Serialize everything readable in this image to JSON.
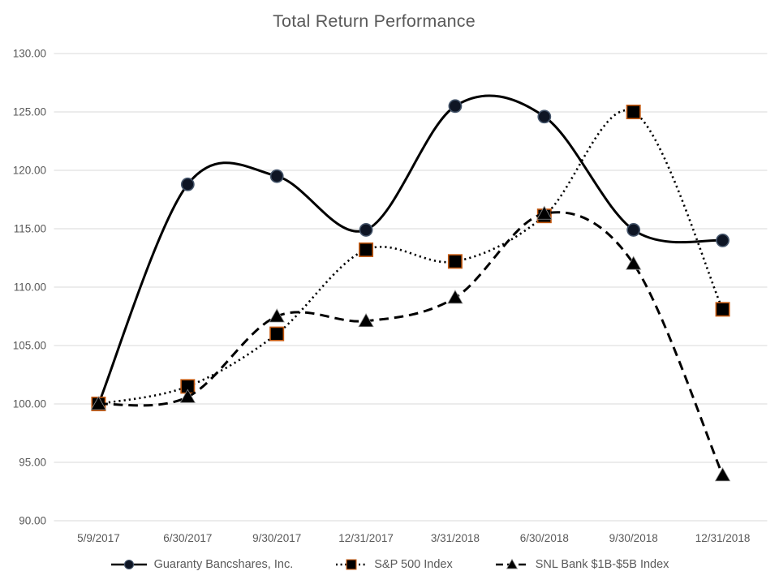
{
  "title": "Total Return Performance",
  "colors": {
    "title_text": "#595959",
    "axis_text": "#595959",
    "gridline": "#D9D9D9",
    "series_line": "#000000",
    "circle_fill": "#0E1524",
    "circle_stroke": "#44546A",
    "square_fill": "#000000",
    "square_stroke": "#C55A11",
    "triangle_fill": "#000000",
    "triangle_stroke": "#8C8C8C"
  },
  "chart_data": {
    "type": "line",
    "title": "Total Return Performance",
    "categories": [
      "5/9/2017",
      "6/30/2017",
      "9/30/2017",
      "12/31/2017",
      "3/31/2018",
      "6/30/2018",
      "9/30/2018",
      "12/31/2018"
    ],
    "series": [
      {
        "name": "Guaranty Bancshares, Inc.",
        "values": [
          100.0,
          118.8,
          119.5,
          114.9,
          125.5,
          124.6,
          114.9,
          114.0
        ],
        "line_style": "solid",
        "marker": "circle"
      },
      {
        "name": "S&P 500 Index",
        "values": [
          100.0,
          101.5,
          106.0,
          113.2,
          112.2,
          116.1,
          125.0,
          108.1
        ],
        "line_style": "dotted",
        "marker": "square"
      },
      {
        "name": "SNL Bank $1B-$5B Index",
        "values": [
          100.0,
          100.6,
          107.5,
          107.1,
          109.1,
          116.3,
          112.0,
          93.9
        ],
        "line_style": "dashed",
        "marker": "triangle"
      }
    ],
    "ylim": [
      90,
      130
    ],
    "ytick_step": 5,
    "ytick_labels": [
      "90.00",
      "95.00",
      "100.00",
      "105.00",
      "110.00",
      "115.00",
      "120.00",
      "125.00",
      "130.00"
    ],
    "grid": true,
    "legend_position": "bottom",
    "line_smoothing": true
  }
}
